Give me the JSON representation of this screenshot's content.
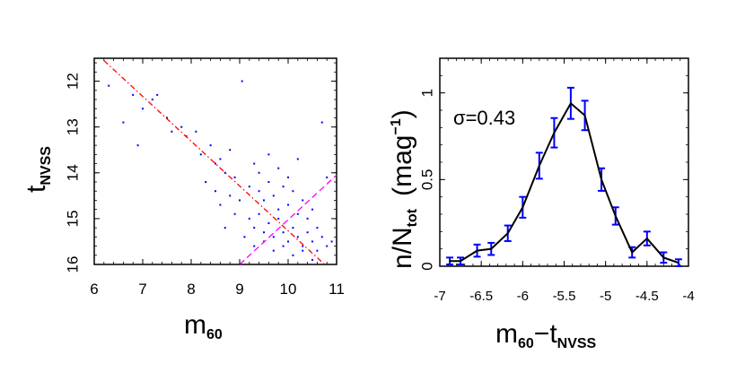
{
  "chart_data": [
    {
      "type": "scatter",
      "xlabel": "m",
      "xlabel_sub": "60",
      "ylabel": "t",
      "ylabel_sub": "NVSS",
      "xlim": [
        6,
        11
      ],
      "ylim": [
        16,
        11.5
      ],
      "xticks": [
        "6",
        "7",
        "8",
        "9",
        "10",
        "11"
      ],
      "yticks": [
        "12",
        "13",
        "14",
        "15",
        "16"
      ],
      "point_color": "#0000ff",
      "reference_lines": [
        {
          "name": "red dash-dot fit",
          "color": "#ff0000",
          "style": "dash-dot",
          "points": [
            [
              6.2,
              11.55
            ],
            [
              10.75,
              16.0
            ]
          ]
        },
        {
          "name": "magenta dashed limit",
          "color": "#ff00ff",
          "style": "dashed",
          "points": [
            [
              9.0,
              16.0
            ],
            [
              11.0,
              14.05
            ]
          ]
        }
      ],
      "points": [
        [
          6.3,
          12.1
        ],
        [
          6.6,
          12.9
        ],
        [
          6.8,
          12.3
        ],
        [
          7.0,
          12.6
        ],
        [
          6.9,
          13.4
        ],
        [
          7.2,
          12.4
        ],
        [
          7.3,
          12.3
        ],
        [
          7.5,
          12.8
        ],
        [
          7.6,
          13.1
        ],
        [
          7.8,
          13.0
        ],
        [
          7.9,
          13.2
        ],
        [
          8.1,
          13.1
        ],
        [
          8.2,
          13.6
        ],
        [
          8.4,
          13.4
        ],
        [
          8.5,
          13.8
        ],
        [
          8.6,
          13.7
        ],
        [
          8.7,
          14.0
        ],
        [
          8.8,
          13.5
        ],
        [
          8.9,
          14.1
        ],
        [
          8.5,
          14.4
        ],
        [
          8.6,
          14.7
        ],
        [
          9.05,
          12.0
        ],
        [
          9.2,
          14.3
        ],
        [
          9.3,
          13.8
        ],
        [
          9.4,
          14.4
        ],
        [
          9.5,
          14.6
        ],
        [
          9.6,
          14.2
        ],
        [
          9.7,
          14.5
        ],
        [
          9.8,
          14.8
        ],
        [
          9.9,
          14.3
        ],
        [
          10.0,
          14.7
        ],
        [
          10.1,
          14.4
        ],
        [
          10.2,
          14.9
        ],
        [
          10.3,
          14.6
        ],
        [
          10.4,
          15.0
        ],
        [
          10.5,
          14.8
        ],
        [
          10.6,
          15.2
        ],
        [
          10.7,
          12.9
        ],
        [
          10.8,
          14.1
        ],
        [
          9.2,
          15.0
        ],
        [
          9.3,
          15.2
        ],
        [
          9.4,
          14.9
        ],
        [
          9.5,
          15.3
        ],
        [
          9.6,
          15.1
        ],
        [
          9.7,
          15.4
        ],
        [
          9.8,
          15.0
        ],
        [
          9.9,
          15.3
        ],
        [
          10.0,
          15.5
        ],
        [
          10.1,
          15.2
        ],
        [
          10.2,
          15.4
        ],
        [
          10.3,
          15.6
        ],
        [
          10.4,
          15.3
        ],
        [
          10.5,
          15.5
        ],
        [
          10.6,
          15.7
        ],
        [
          10.7,
          15.4
        ],
        [
          10.8,
          15.6
        ],
        [
          10.9,
          15.5
        ],
        [
          9.1,
          15.4
        ],
        [
          9.3,
          15.6
        ],
        [
          9.5,
          15.5
        ],
        [
          9.7,
          15.7
        ],
        [
          9.9,
          15.6
        ],
        [
          10.1,
          15.8
        ],
        [
          10.3,
          15.7
        ],
        [
          10.5,
          15.9
        ],
        [
          9.4,
          14.0
        ],
        [
          9.6,
          13.6
        ],
        [
          9.8,
          13.9
        ],
        [
          10.0,
          14.1
        ],
        [
          10.2,
          13.7
        ],
        [
          8.3,
          14.2
        ],
        [
          8.9,
          14.9
        ],
        [
          9.0,
          14.6
        ],
        [
          8.7,
          15.2
        ],
        [
          8.8,
          14.5
        ]
      ]
    },
    {
      "type": "line",
      "xlabel": "m",
      "xlabel_sub": "60",
      "xlabel_minus": "−t",
      "xlabel_sub2": "NVSS",
      "ylabel": "n/N",
      "ylabel_sub": "tot",
      "ylabel_units": "(mag",
      "ylabel_sup": "−1",
      "ylabel_close": ")",
      "annotation": "σ=0.43",
      "xlim": [
        -7,
        -4
      ],
      "ylim": [
        0,
        1.2
      ],
      "xticks": [
        "-7",
        "-6.5",
        "-6",
        "-5.5",
        "-5",
        "-4.5",
        "-4"
      ],
      "yticks": [
        "0",
        "0.5",
        "1"
      ],
      "line_color": "#000000",
      "errorbar_color": "#0000ff",
      "x": [
        -6.88,
        -6.75,
        -6.55,
        -6.38,
        -6.18,
        -6.0,
        -5.8,
        -5.62,
        -5.42,
        -5.25,
        -5.05,
        -4.88,
        -4.68,
        -4.5,
        -4.3,
        -4.12
      ],
      "y": [
        0.03,
        0.03,
        0.09,
        0.1,
        0.19,
        0.34,
        0.58,
        0.77,
        0.94,
        0.87,
        0.5,
        0.29,
        0.08,
        0.16,
        0.05,
        0.02
      ],
      "yerr": [
        0.02,
        0.02,
        0.035,
        0.035,
        0.045,
        0.06,
        0.075,
        0.085,
        0.09,
        0.085,
        0.065,
        0.05,
        0.03,
        0.04,
        0.03,
        0.02
      ]
    }
  ]
}
